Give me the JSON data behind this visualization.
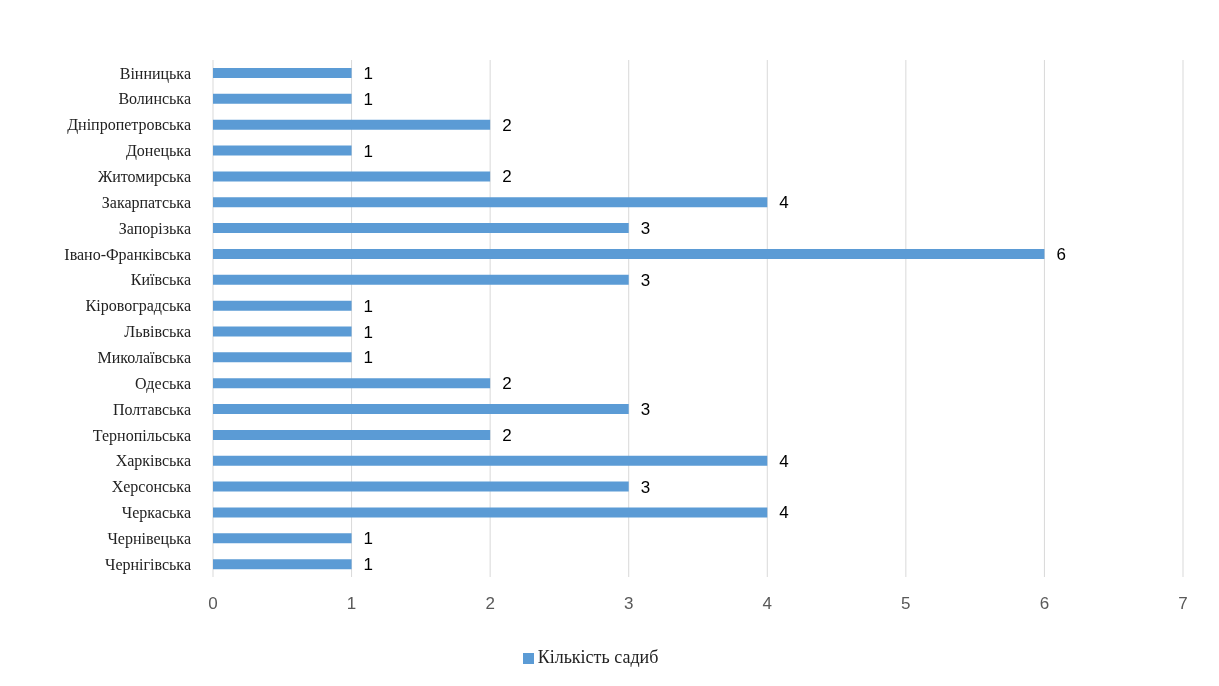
{
  "chart_data": {
    "type": "bar",
    "orientation": "horizontal",
    "categories": [
      "Вінницька",
      "Волинська",
      "Дніпропетровська",
      "Донецька",
      "Житомирська",
      "Закарпатська",
      "Запорізька",
      "Івано-Франківська",
      "Київська",
      "Кіровоградська",
      "Львівська",
      "Миколаївська",
      "Одеська",
      "Полтавська",
      "Тернопільська",
      "Харківська",
      "Херсонська",
      "Черкаська",
      "Чернівецька",
      "Чернігівська"
    ],
    "series": [
      {
        "name": "Кількість садиб",
        "color": "#5b9bd5",
        "values": [
          1,
          1,
          2,
          1,
          2,
          4,
          3,
          6,
          3,
          1,
          1,
          1,
          2,
          3,
          2,
          4,
          3,
          4,
          1,
          1
        ]
      }
    ],
    "xlim": [
      0,
      7
    ],
    "xticks": [
      0,
      1,
      2,
      3,
      4,
      5,
      6,
      7
    ],
    "grid": "x",
    "legend": "bottom",
    "data_labels": true
  }
}
